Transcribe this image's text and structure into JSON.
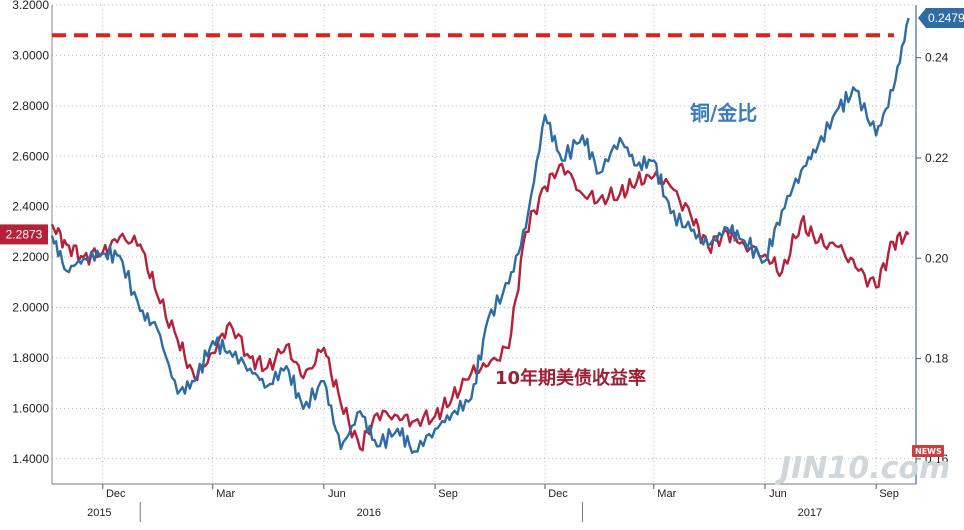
{
  "chart_data": {
    "type": "line",
    "x": [
      "2015-10-20",
      "2015-11-01",
      "2015-11-15",
      "2015-12-01",
      "2015-12-15",
      "2016-01-01",
      "2016-01-15",
      "2016-02-01",
      "2016-02-15",
      "2016-03-01",
      "2016-03-15",
      "2016-04-01",
      "2016-04-15",
      "2016-05-01",
      "2016-05-15",
      "2016-06-01",
      "2016-06-15",
      "2016-07-01",
      "2016-07-15",
      "2016-08-01",
      "2016-08-15",
      "2016-09-01",
      "2016-09-15",
      "2016-10-01",
      "2016-10-15",
      "2016-11-01",
      "2016-11-15",
      "2016-12-01",
      "2016-12-15",
      "2017-01-01",
      "2017-01-15",
      "2017-02-01",
      "2017-02-15",
      "2017-03-01",
      "2017-03-15",
      "2017-04-01",
      "2017-04-15",
      "2017-05-01",
      "2017-05-15",
      "2017-06-01",
      "2017-06-15",
      "2017-07-01",
      "2017-07-15",
      "2017-08-01",
      "2017-08-15",
      "2017-09-01",
      "2017-09-15",
      "2017-09-28"
    ],
    "left_axis": {
      "ylim": [
        1.3,
        3.2
      ],
      "ticks": [
        "1.4000",
        "1.6000",
        "1.8000",
        "2.0000",
        "2.2000",
        "2.4000",
        "2.6000",
        "2.8000",
        "3.0000",
        "3.2000"
      ]
    },
    "right_axis": {
      "ylim": [
        0.155,
        0.2505
      ],
      "ticks": [
        "0.16",
        "0.18",
        "0.20",
        "0.22",
        "0.24"
      ]
    },
    "x_ticks": [
      "Dec",
      "Mar",
      "Jun",
      "Sep",
      "Dec",
      "Mar",
      "Jun",
      "Sep"
    ],
    "year_labels": [
      "2015",
      "2016",
      "2017"
    ],
    "series": [
      {
        "name": "10年期美债收益率",
        "axis": "left",
        "color": "#b5203a",
        "last_label": "2.2873",
        "values": [
          2.33,
          2.25,
          2.2,
          2.22,
          2.28,
          2.25,
          2.05,
          1.87,
          1.72,
          1.82,
          1.94,
          1.8,
          1.76,
          1.85,
          1.72,
          1.84,
          1.62,
          1.44,
          1.58,
          1.57,
          1.55,
          1.57,
          1.64,
          1.74,
          1.77,
          1.84,
          2.3,
          2.48,
          2.57,
          2.45,
          2.43,
          2.45,
          2.5,
          2.52,
          2.48,
          2.36,
          2.24,
          2.3,
          2.25,
          2.21,
          2.14,
          2.34,
          2.26,
          2.24,
          2.16,
          2.08,
          2.26,
          2.29
        ]
      },
      {
        "name": "铜/金比",
        "axis": "right",
        "color": "#2e6ca4",
        "last_label": "0.2479",
        "values": [
          0.2045,
          0.1975,
          0.2,
          0.201,
          0.2005,
          0.1895,
          0.186,
          0.173,
          0.1755,
          0.1835,
          0.1815,
          0.178,
          0.1745,
          0.1785,
          0.17,
          0.1755,
          0.162,
          0.1695,
          0.1625,
          0.166,
          0.1615,
          0.166,
          0.169,
          0.172,
          0.188,
          0.195,
          0.206,
          0.2285,
          0.2195,
          0.2245,
          0.217,
          0.224,
          0.2185,
          0.2195,
          0.209,
          0.2055,
          0.2025,
          0.206,
          0.2035,
          0.1995,
          0.2095,
          0.2175,
          0.2225,
          0.23,
          0.2335,
          0.2245,
          0.2335,
          0.2479
        ]
      }
    ],
    "reference_line": {
      "axis": "left",
      "value": 3.08,
      "color": "#e0201b",
      "style": "dashed"
    },
    "annotations": {
      "red": "10年期美债收益率",
      "blue": "铜/金比"
    },
    "grid": true
  },
  "watermark": {
    "text": "JIN10.com",
    "tag": "NEWS"
  }
}
